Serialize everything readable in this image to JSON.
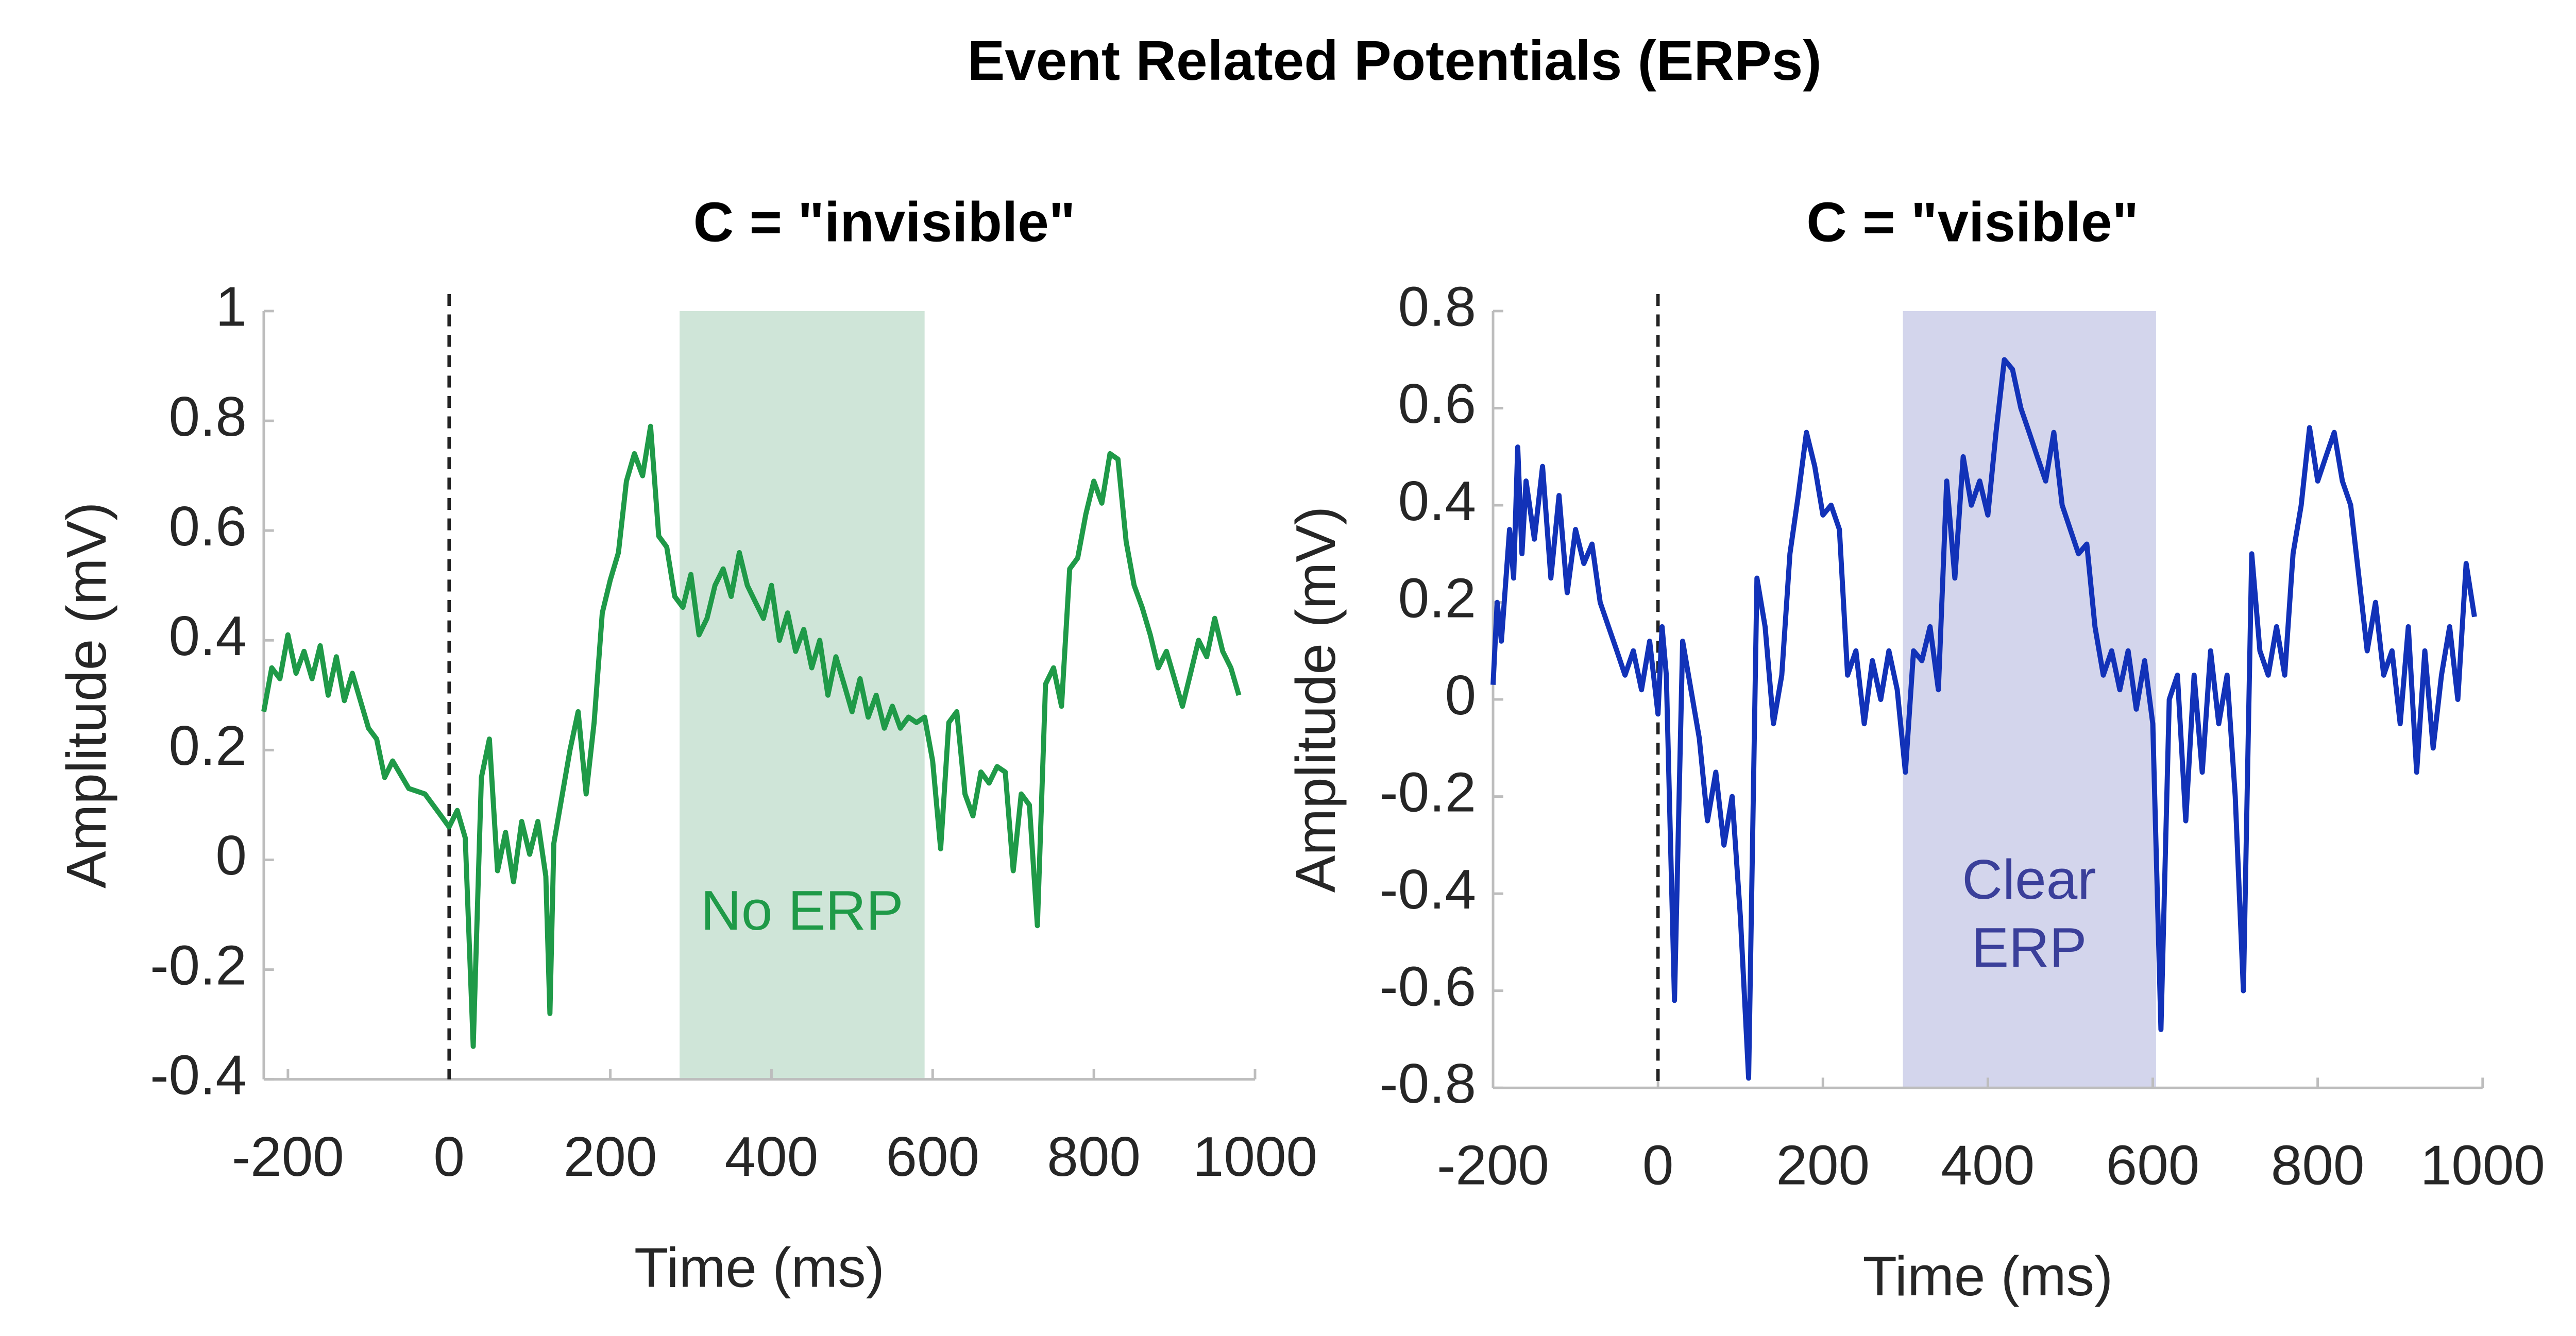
{
  "title": "Event Related Potentials (ERPs)",
  "chart_data": [
    {
      "type": "line",
      "title": "C = \"invisible\"",
      "xlabel": "Time (ms)",
      "ylabel": "Amplitude (mV)",
      "xlim": [
        -230,
        1000
      ],
      "xticks": [
        -200,
        0,
        200,
        400,
        600,
        800,
        1000
      ],
      "ylim": [
        -0.4,
        1
      ],
      "yticks": [
        -0.4,
        -0.2,
        0,
        0.2,
        0.4,
        0.6,
        0.8,
        1
      ],
      "vline": 0,
      "highlight": {
        "x": [
          286,
          590
        ],
        "color": "#cfe5d8"
      },
      "annotation": {
        "lines": [
          "No ERP"
        ],
        "color": "#1f9a48",
        "x": 438,
        "y": -0.1
      },
      "x": [
        -230,
        -220,
        -210,
        -200,
        -190,
        -180,
        -170,
        -160,
        -150,
        -140,
        -130,
        -120,
        -100,
        -90,
        -80,
        -70,
        -50,
        -30,
        -10,
        0,
        10,
        20,
        30,
        40,
        50,
        60,
        70,
        80,
        90,
        100,
        110,
        120,
        125,
        130,
        150,
        160,
        170,
        180,
        190,
        200,
        210,
        220,
        230,
        240,
        250,
        260,
        270,
        280,
        290,
        300,
        310,
        320,
        330,
        340,
        350,
        360,
        370,
        380,
        390,
        400,
        410,
        420,
        430,
        440,
        450,
        460,
        470,
        480,
        490,
        500,
        510,
        520,
        530,
        540,
        550,
        560,
        570,
        580,
        590,
        600,
        610,
        620,
        630,
        640,
        650,
        660,
        670,
        680,
        690,
        700,
        710,
        720,
        730,
        740,
        750,
        760,
        770,
        780,
        790,
        800,
        810,
        820,
        830,
        840,
        850,
        860,
        870,
        880,
        890,
        900,
        910,
        920,
        930,
        940,
        950,
        960,
        970,
        980
      ],
      "series": [
        {
          "color": "#1f9a48",
          "values": [
            0.27,
            0.35,
            0.33,
            0.41,
            0.34,
            0.38,
            0.33,
            0.39,
            0.3,
            0.37,
            0.29,
            0.34,
            0.24,
            0.22,
            0.15,
            0.18,
            0.13,
            0.12,
            0.08,
            0.06,
            0.09,
            0.04,
            -0.34,
            0.15,
            0.22,
            -0.02,
            0.05,
            -0.04,
            0.07,
            0.01,
            0.07,
            -0.03,
            -0.28,
            0.03,
            0.2,
            0.27,
            0.12,
            0.25,
            0.45,
            0.51,
            0.56,
            0.69,
            0.74,
            0.7,
            0.79,
            0.59,
            0.57,
            0.48,
            0.46,
            0.52,
            0.41,
            0.44,
            0.5,
            0.53,
            0.48,
            0.56,
            0.5,
            0.47,
            0.44,
            0.5,
            0.4,
            0.45,
            0.38,
            0.42,
            0.35,
            0.4,
            0.3,
            0.37,
            0.32,
            0.27,
            0.33,
            0.26,
            0.3,
            0.24,
            0.28,
            0.24,
            0.26,
            0.25,
            0.26,
            0.18,
            0.02,
            0.25,
            0.27,
            0.12,
            0.08,
            0.16,
            0.14,
            0.17,
            0.16,
            -0.02,
            0.12,
            0.1,
            -0.12,
            0.32,
            0.35,
            0.28,
            0.53,
            0.55,
            0.63,
            0.69,
            0.65,
            0.74,
            0.73,
            0.58,
            0.5,
            0.46,
            0.41,
            0.35,
            0.38,
            0.33,
            0.28,
            0.34,
            0.4,
            0.37,
            0.44,
            0.38,
            0.35,
            0.3
          ]
        }
      ]
    },
    {
      "type": "line",
      "title": "C = \"visible\"",
      "xlabel": "Time (ms)",
      "ylabel": "Amplitude (mV)",
      "xlim": [
        -200,
        1000
      ],
      "xticks": [
        -200,
        0,
        200,
        400,
        600,
        800,
        1000
      ],
      "ylim": [
        -0.8,
        0.8
      ],
      "yticks": [
        -0.8,
        -0.6,
        -0.4,
        -0.2,
        0,
        0.2,
        0.4,
        0.6,
        0.8
      ],
      "vline": 0,
      "highlight": {
        "x": [
          297,
          604
        ],
        "color": "#d3d5ec"
      },
      "annotation": {
        "lines": [
          "Clear",
          "ERP"
        ],
        "color": "#3a3f9a",
        "x": 450,
        "y": -0.45
      },
      "x": [
        -200,
        -195,
        -190,
        -180,
        -175,
        -170,
        -165,
        -160,
        -150,
        -140,
        -130,
        -120,
        -110,
        -100,
        -90,
        -80,
        -70,
        -60,
        -50,
        -40,
        -30,
        -20,
        -10,
        0,
        5,
        10,
        20,
        30,
        40,
        50,
        60,
        70,
        80,
        90,
        100,
        110,
        120,
        130,
        140,
        150,
        160,
        170,
        180,
        190,
        200,
        210,
        220,
        230,
        240,
        250,
        260,
        270,
        280,
        290,
        300,
        310,
        320,
        330,
        340,
        350,
        360,
        370,
        380,
        390,
        400,
        410,
        420,
        430,
        440,
        450,
        460,
        470,
        480,
        490,
        500,
        510,
        520,
        530,
        540,
        550,
        560,
        570,
        580,
        590,
        600,
        610,
        620,
        630,
        640,
        650,
        660,
        670,
        680,
        690,
        700,
        710,
        720,
        730,
        740,
        750,
        760,
        770,
        780,
        790,
        800,
        810,
        820,
        830,
        840,
        850,
        860,
        870,
        880,
        890,
        900,
        910,
        920,
        930,
        940,
        950,
        960,
        970,
        980,
        990
      ],
      "series": [
        {
          "color": "#1232b8",
          "values": [
            0.03,
            0.2,
            0.12,
            0.35,
            0.25,
            0.52,
            0.3,
            0.45,
            0.33,
            0.48,
            0.25,
            0.42,
            0.22,
            0.35,
            0.28,
            0.32,
            0.2,
            0.15,
            0.1,
            0.05,
            0.1,
            0.02,
            0.12,
            -0.03,
            0.15,
            0.05,
            -0.62,
            0.12,
            0.02,
            -0.08,
            -0.25,
            -0.15,
            -0.3,
            -0.2,
            -0.45,
            -0.78,
            0.25,
            0.15,
            -0.05,
            0.05,
            0.3,
            0.42,
            0.55,
            0.48,
            0.38,
            0.4,
            0.35,
            0.05,
            0.1,
            -0.05,
            0.08,
            0,
            0.1,
            0.02,
            -0.15,
            0.1,
            0.08,
            0.15,
            0.02,
            0.45,
            0.25,
            0.5,
            0.4,
            0.45,
            0.38,
            0.55,
            0.7,
            0.68,
            0.6,
            0.55,
            0.5,
            0.45,
            0.55,
            0.4,
            0.35,
            0.3,
            0.32,
            0.15,
            0.05,
            0.1,
            0.02,
            0.1,
            -0.02,
            0.08,
            -0.05,
            -0.68,
            0,
            0.05,
            -0.25,
            0.05,
            -0.15,
            0.1,
            -0.05,
            0.05,
            -0.2,
            -0.6,
            0.3,
            0.1,
            0.05,
            0.15,
            0.05,
            0.3,
            0.4,
            0.56,
            0.45,
            0.5,
            0.55,
            0.45,
            0.4,
            0.25,
            0.1,
            0.2,
            0.05,
            0.1,
            -0.05,
            0.15,
            -0.15,
            0.1,
            -0.1,
            0.05,
            0.15,
            0,
            0.28,
            0.17
          ]
        }
      ]
    }
  ]
}
